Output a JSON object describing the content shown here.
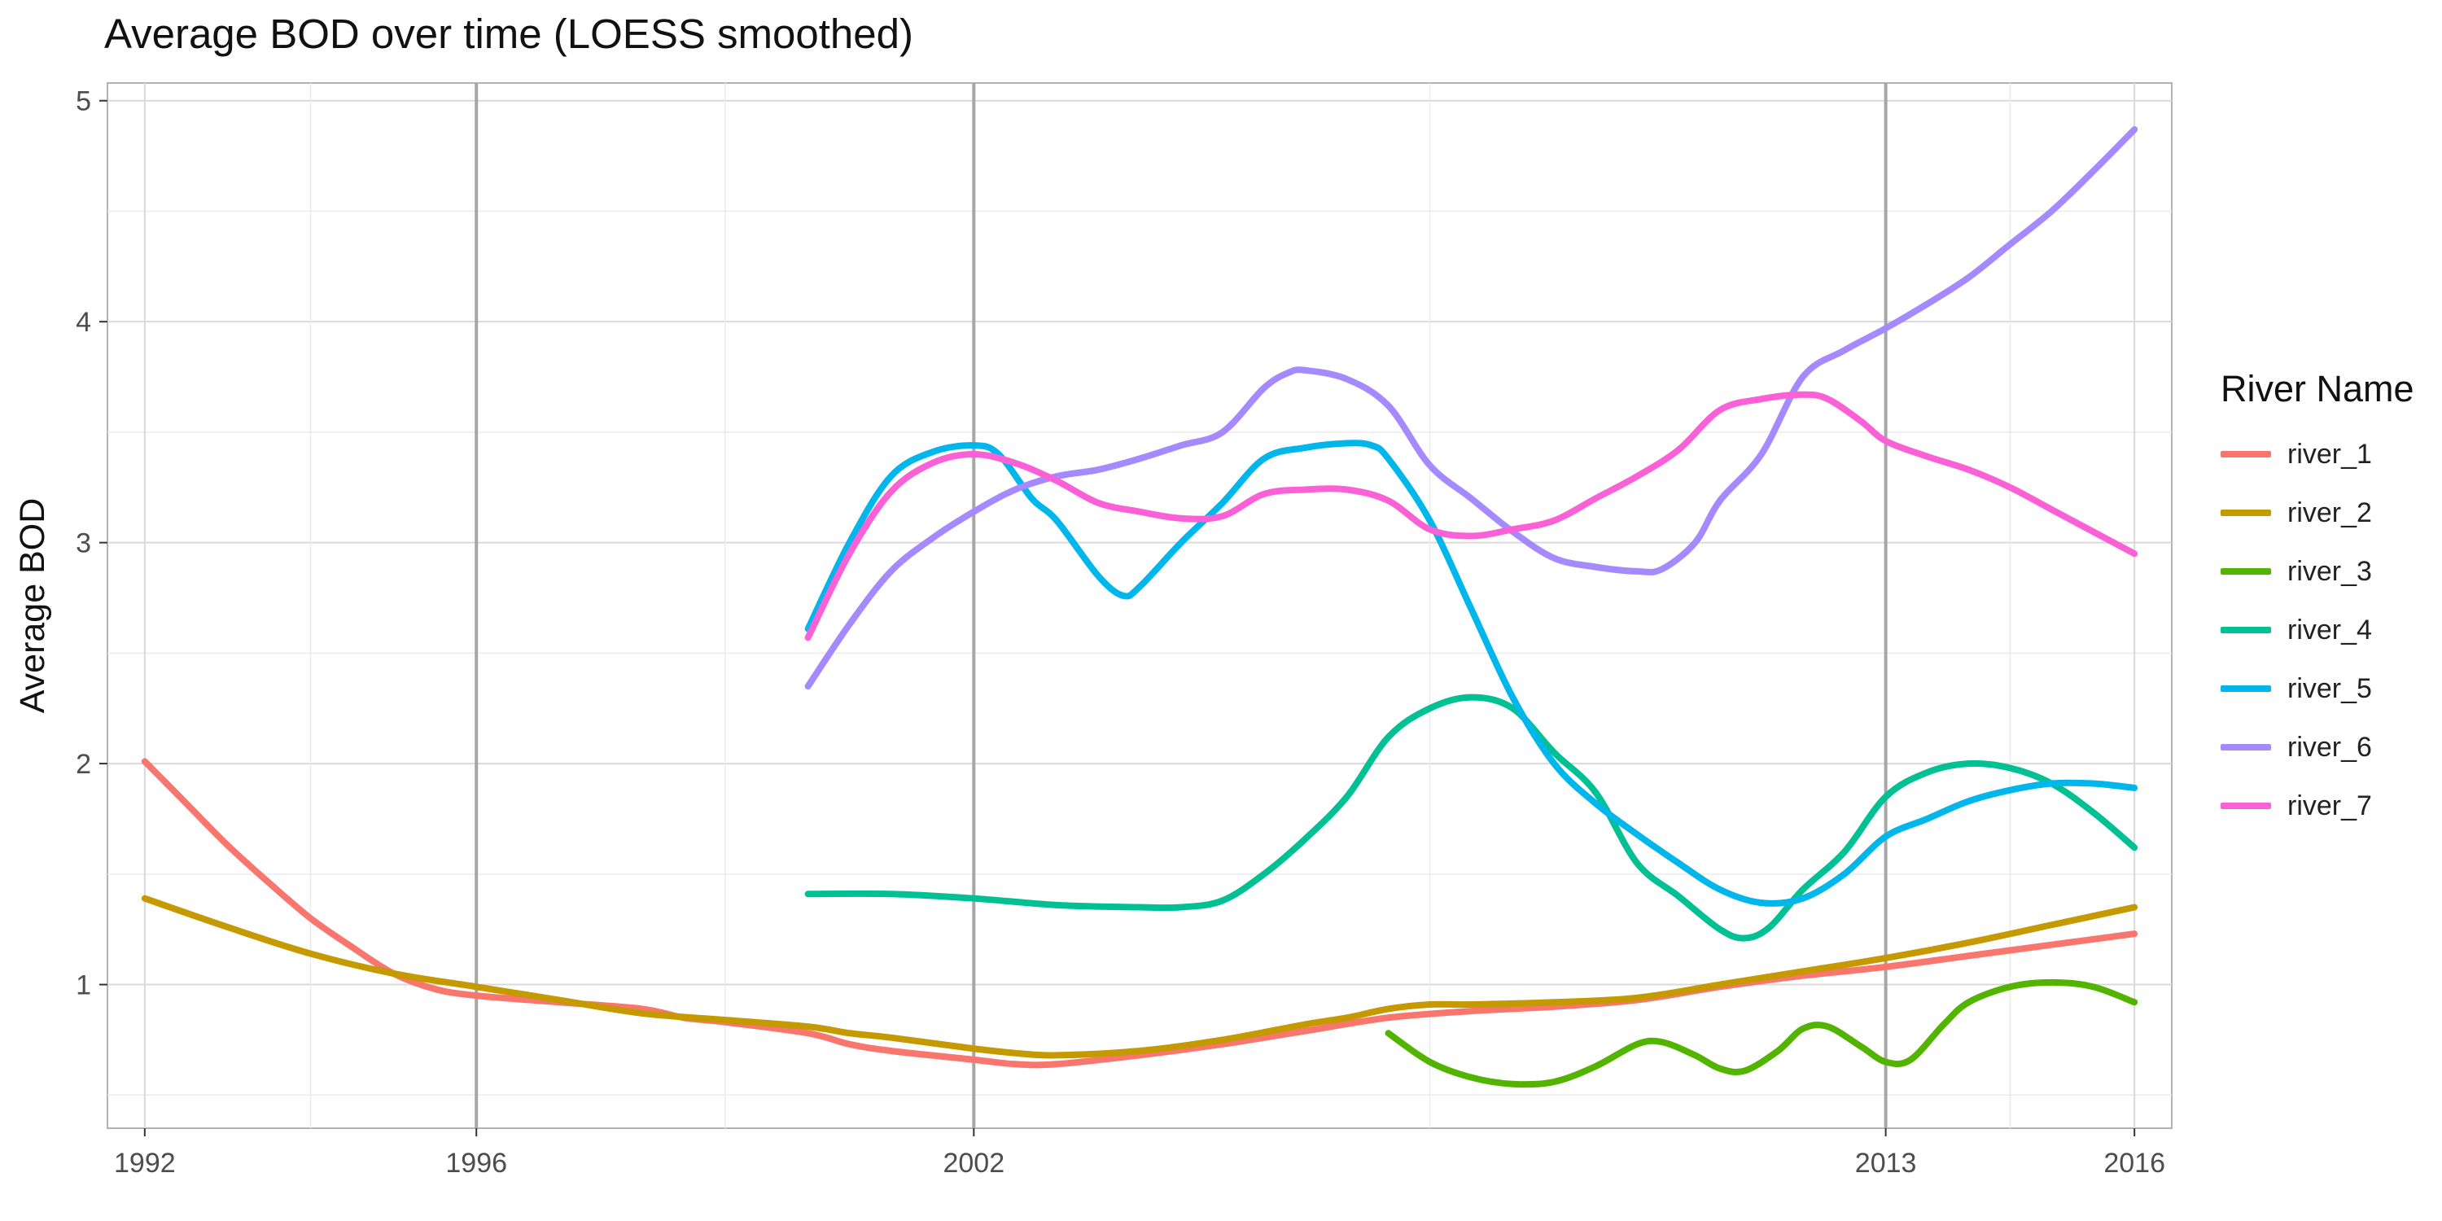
{
  "chart_data": {
    "type": "line",
    "title": "Average BOD over time (LOESS smoothed)",
    "xlabel": "",
    "ylabel": "Average BOD",
    "legend_title": "River Name",
    "legend_position": "right",
    "grid": true,
    "xlim": [
      1991.55,
      2016.45
    ],
    "ylim": [
      0.35,
      5.08
    ],
    "x_ticks": [
      1992,
      1996,
      2002,
      2013,
      2016
    ],
    "x_vlines": [
      1996,
      2002,
      2013
    ],
    "y_ticks": [
      1,
      2,
      3,
      4,
      5
    ],
    "series": [
      {
        "name": "river_1",
        "color": "#F8766D",
        "points": [
          [
            1992,
            2.01
          ],
          [
            1992.5,
            1.82
          ],
          [
            1993,
            1.63
          ],
          [
            1993.5,
            1.46
          ],
          [
            1994,
            1.3
          ],
          [
            1994.5,
            1.17
          ],
          [
            1995,
            1.05
          ],
          [
            1995.5,
            0.98
          ],
          [
            1996,
            0.95
          ],
          [
            1997,
            0.92
          ],
          [
            1998,
            0.89
          ],
          [
            1998.5,
            0.85
          ],
          [
            1999,
            0.83
          ],
          [
            2000,
            0.78
          ],
          [
            2000.5,
            0.73
          ],
          [
            2001,
            0.7
          ],
          [
            2002,
            0.66
          ],
          [
            2002.5,
            0.64
          ],
          [
            2003,
            0.64
          ],
          [
            2004,
            0.68
          ],
          [
            2005,
            0.73
          ],
          [
            2006,
            0.79
          ],
          [
            2007,
            0.85
          ],
          [
            2008,
            0.88
          ],
          [
            2009,
            0.9
          ],
          [
            2010,
            0.93
          ],
          [
            2011,
            0.99
          ],
          [
            2012,
            1.04
          ],
          [
            2013,
            1.08
          ],
          [
            2014,
            1.13
          ],
          [
            2015,
            1.18
          ],
          [
            2016,
            1.23
          ]
        ]
      },
      {
        "name": "river_2",
        "color": "#C49A00",
        "points": [
          [
            1992,
            1.39
          ],
          [
            1993,
            1.26
          ],
          [
            1994,
            1.14
          ],
          [
            1995,
            1.05
          ],
          [
            1996,
            0.99
          ],
          [
            1997,
            0.93
          ],
          [
            1998,
            0.87
          ],
          [
            1999,
            0.84
          ],
          [
            2000,
            0.81
          ],
          [
            2000.5,
            0.78
          ],
          [
            2001,
            0.76
          ],
          [
            2002,
            0.71
          ],
          [
            2002.5,
            0.69
          ],
          [
            2003,
            0.68
          ],
          [
            2004,
            0.7
          ],
          [
            2005,
            0.75
          ],
          [
            2006,
            0.82
          ],
          [
            2006.5,
            0.85
          ],
          [
            2007,
            0.89
          ],
          [
            2007.5,
            0.91
          ],
          [
            2008,
            0.91
          ],
          [
            2009,
            0.92
          ],
          [
            2010,
            0.94
          ],
          [
            2011,
            1.0
          ],
          [
            2012,
            1.06
          ],
          [
            2013,
            1.12
          ],
          [
            2014,
            1.19
          ],
          [
            2015,
            1.27
          ],
          [
            2016,
            1.35
          ]
        ]
      },
      {
        "name": "river_3",
        "color": "#53B400",
        "points": [
          [
            2007,
            0.78
          ],
          [
            2007.5,
            0.65
          ],
          [
            2008,
            0.58
          ],
          [
            2008.5,
            0.55
          ],
          [
            2009,
            0.56
          ],
          [
            2009.5,
            0.63
          ],
          [
            2010,
            0.73
          ],
          [
            2010.3,
            0.74
          ],
          [
            2010.7,
            0.68
          ],
          [
            2011,
            0.62
          ],
          [
            2011.3,
            0.61
          ],
          [
            2011.7,
            0.7
          ],
          [
            2012,
            0.8
          ],
          [
            2012.3,
            0.81
          ],
          [
            2012.7,
            0.72
          ],
          [
            2013,
            0.65
          ],
          [
            2013.3,
            0.66
          ],
          [
            2013.7,
            0.82
          ],
          [
            2014,
            0.92
          ],
          [
            2014.5,
            0.99
          ],
          [
            2015,
            1.01
          ],
          [
            2015.5,
            0.99
          ],
          [
            2016,
            0.92
          ]
        ]
      },
      {
        "name": "river_4",
        "color": "#00C094",
        "points": [
          [
            2000,
            1.41
          ],
          [
            2001,
            1.41
          ],
          [
            2002,
            1.39
          ],
          [
            2003,
            1.36
          ],
          [
            2004,
            1.35
          ],
          [
            2004.5,
            1.35
          ],
          [
            2005,
            1.38
          ],
          [
            2005.5,
            1.5
          ],
          [
            2006,
            1.66
          ],
          [
            2006.5,
            1.85
          ],
          [
            2007,
            2.12
          ],
          [
            2007.5,
            2.25
          ],
          [
            2008,
            2.3
          ],
          [
            2008.5,
            2.25
          ],
          [
            2009,
            2.05
          ],
          [
            2009.5,
            1.87
          ],
          [
            2010,
            1.55
          ],
          [
            2010.5,
            1.4
          ],
          [
            2011,
            1.25
          ],
          [
            2011.3,
            1.21
          ],
          [
            2011.6,
            1.26
          ],
          [
            2012,
            1.43
          ],
          [
            2012.5,
            1.6
          ],
          [
            2013,
            1.85
          ],
          [
            2013.5,
            1.96
          ],
          [
            2014,
            2.0
          ],
          [
            2014.5,
            1.98
          ],
          [
            2015,
            1.91
          ],
          [
            2015.5,
            1.78
          ],
          [
            2016,
            1.62
          ]
        ]
      },
      {
        "name": "river_5",
        "color": "#00B6EB",
        "points": [
          [
            2000,
            2.61
          ],
          [
            2000.5,
            3.0
          ],
          [
            2001,
            3.3
          ],
          [
            2001.5,
            3.41
          ],
          [
            2002,
            3.44
          ],
          [
            2002.3,
            3.4
          ],
          [
            2002.7,
            3.2
          ],
          [
            2003,
            3.1
          ],
          [
            2003.5,
            2.85
          ],
          [
            2003.8,
            2.76
          ],
          [
            2004,
            2.8
          ],
          [
            2004.5,
            3.0
          ],
          [
            2005,
            3.18
          ],
          [
            2005.5,
            3.38
          ],
          [
            2006,
            3.43
          ],
          [
            2006.5,
            3.45
          ],
          [
            2006.8,
            3.44
          ],
          [
            2007,
            3.38
          ],
          [
            2007.5,
            3.1
          ],
          [
            2008,
            2.7
          ],
          [
            2008.5,
            2.3
          ],
          [
            2009,
            2.0
          ],
          [
            2009.5,
            1.82
          ],
          [
            2010,
            1.68
          ],
          [
            2010.5,
            1.55
          ],
          [
            2011,
            1.43
          ],
          [
            2011.5,
            1.37
          ],
          [
            2012,
            1.39
          ],
          [
            2012.5,
            1.5
          ],
          [
            2013,
            1.67
          ],
          [
            2013.5,
            1.75
          ],
          [
            2014,
            1.83
          ],
          [
            2014.5,
            1.88
          ],
          [
            2015,
            1.91
          ],
          [
            2015.5,
            1.91
          ],
          [
            2016,
            1.89
          ]
        ]
      },
      {
        "name": "river_6",
        "color": "#A58AFF",
        "points": [
          [
            2000,
            2.35
          ],
          [
            2000.5,
            2.63
          ],
          [
            2001,
            2.87
          ],
          [
            2001.5,
            3.02
          ],
          [
            2002,
            3.14
          ],
          [
            2002.5,
            3.24
          ],
          [
            2003,
            3.3
          ],
          [
            2003.5,
            3.33
          ],
          [
            2004,
            3.38
          ],
          [
            2004.5,
            3.44
          ],
          [
            2005,
            3.5
          ],
          [
            2005.5,
            3.7
          ],
          [
            2005.8,
            3.77
          ],
          [
            2006,
            3.78
          ],
          [
            2006.5,
            3.74
          ],
          [
            2007,
            3.62
          ],
          [
            2007.5,
            3.35
          ],
          [
            2008,
            3.2
          ],
          [
            2008.5,
            3.05
          ],
          [
            2009,
            2.93
          ],
          [
            2009.5,
            2.89
          ],
          [
            2010,
            2.87
          ],
          [
            2010.3,
            2.88
          ],
          [
            2010.7,
            3.0
          ],
          [
            2011,
            3.19
          ],
          [
            2011.5,
            3.4
          ],
          [
            2012,
            3.75
          ],
          [
            2012.5,
            3.87
          ],
          [
            2013,
            3.97
          ],
          [
            2013.5,
            4.08
          ],
          [
            2014,
            4.2
          ],
          [
            2014.5,
            4.35
          ],
          [
            2015,
            4.5
          ],
          [
            2015.5,
            4.68
          ],
          [
            2016,
            4.87
          ]
        ]
      },
      {
        "name": "river_7",
        "color": "#FB61D7",
        "points": [
          [
            2000,
            2.57
          ],
          [
            2000.5,
            2.95
          ],
          [
            2001,
            3.23
          ],
          [
            2001.5,
            3.36
          ],
          [
            2002,
            3.4
          ],
          [
            2002.5,
            3.36
          ],
          [
            2003,
            3.28
          ],
          [
            2003.5,
            3.18
          ],
          [
            2004,
            3.14
          ],
          [
            2004.5,
            3.11
          ],
          [
            2005,
            3.12
          ],
          [
            2005.5,
            3.22
          ],
          [
            2006,
            3.24
          ],
          [
            2006.5,
            3.24
          ],
          [
            2007,
            3.19
          ],
          [
            2007.5,
            3.06
          ],
          [
            2008,
            3.03
          ],
          [
            2008.5,
            3.06
          ],
          [
            2009,
            3.1
          ],
          [
            2009.5,
            3.2
          ],
          [
            2010,
            3.3
          ],
          [
            2010.5,
            3.42
          ],
          [
            2011,
            3.6
          ],
          [
            2011.5,
            3.65
          ],
          [
            2012,
            3.67
          ],
          [
            2012.3,
            3.65
          ],
          [
            2012.7,
            3.55
          ],
          [
            2013,
            3.46
          ],
          [
            2013.5,
            3.39
          ],
          [
            2014,
            3.33
          ],
          [
            2014.5,
            3.25
          ],
          [
            2015,
            3.15
          ],
          [
            2015.5,
            3.05
          ],
          [
            2016,
            2.95
          ]
        ]
      }
    ]
  }
}
